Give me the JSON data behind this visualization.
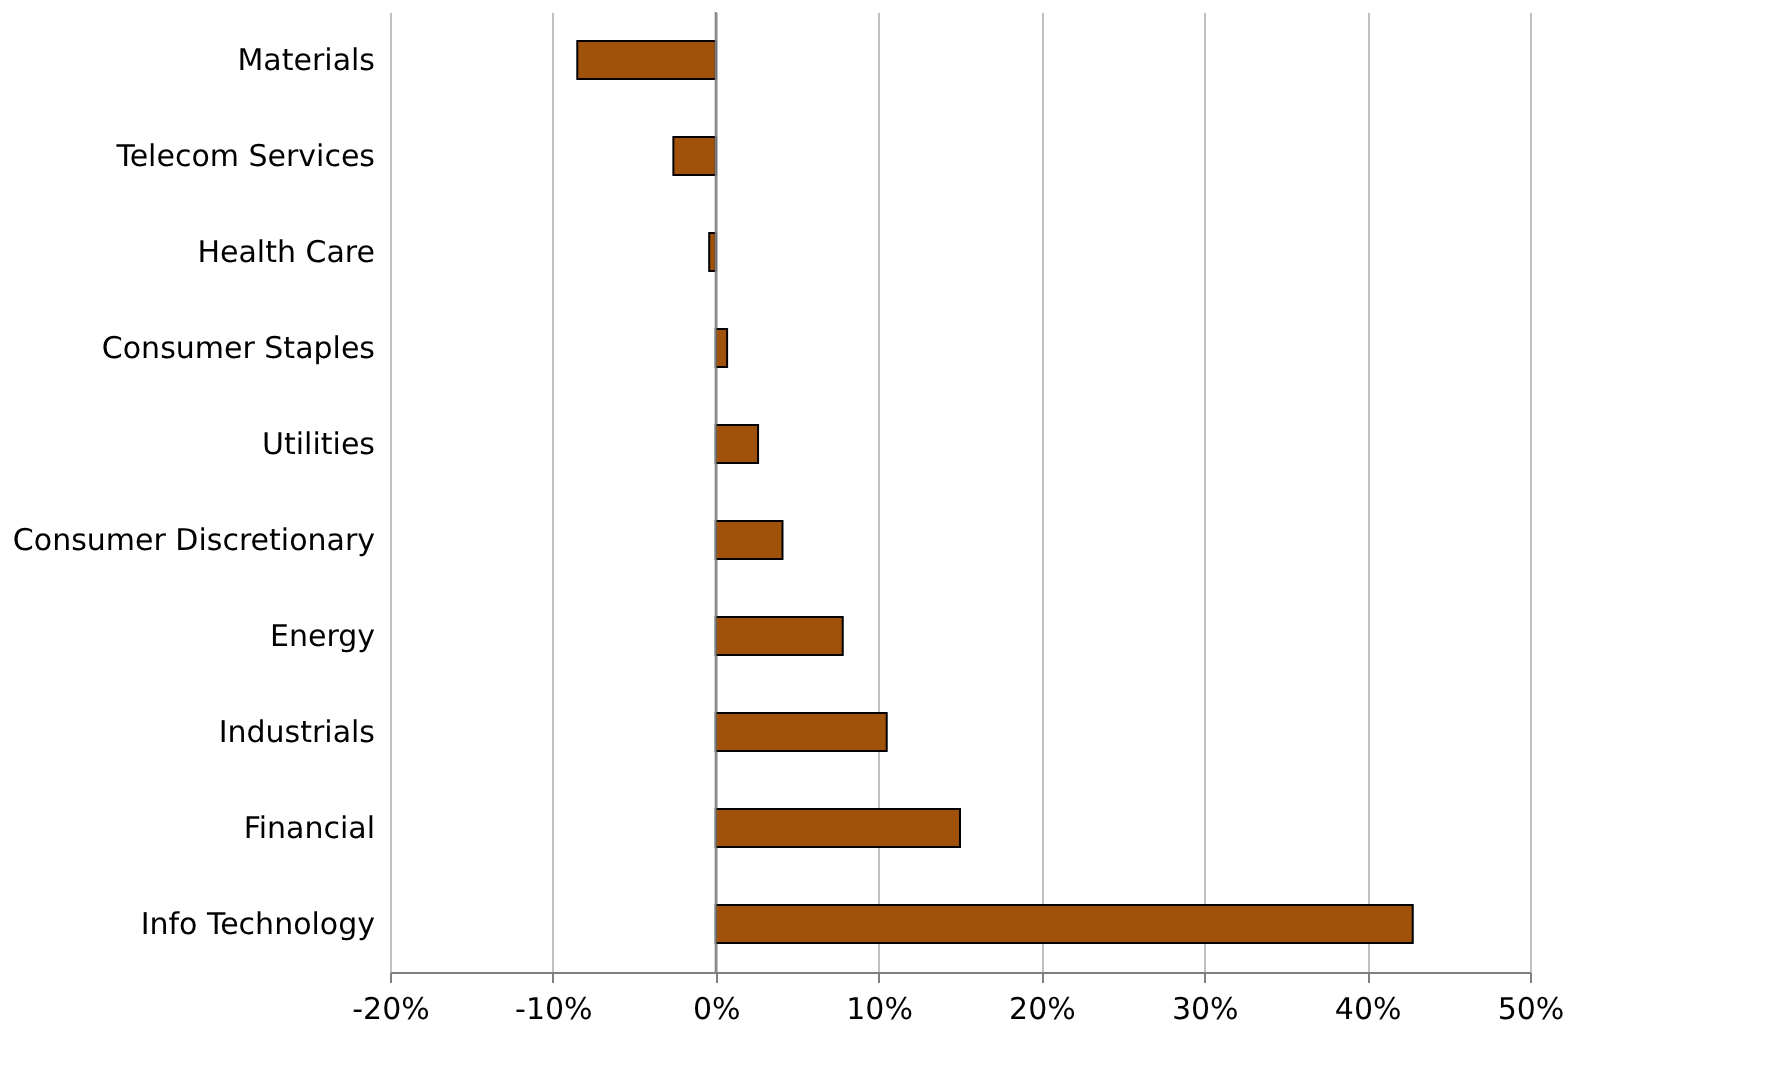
{
  "chart_data": {
    "type": "bar",
    "orientation": "horizontal",
    "categories": [
      "Materials",
      "Telecom Services",
      "Health Care",
      "Consumer Staples",
      "Utilities",
      "Consumer Discretionary",
      "Energy",
      "Industrials",
      "Financial",
      "Info Technology"
    ],
    "values": [
      -8.5,
      -2.6,
      -0.4,
      0.7,
      2.6,
      4.1,
      7.8,
      10.5,
      15.0,
      42.8
    ],
    "color": "#a0520a",
    "xlim": [
      -20,
      50
    ],
    "xticks": [
      {
        "value": -20,
        "label": "-20%"
      },
      {
        "value": -10,
        "label": "-10%"
      },
      {
        "value": 0,
        "label": "0%"
      },
      {
        "value": 10,
        "label": "10%"
      },
      {
        "value": 20,
        "label": "20%"
      },
      {
        "value": 30,
        "label": "30%"
      },
      {
        "value": 40,
        "label": "40%"
      },
      {
        "value": 50,
        "label": "50%"
      }
    ],
    "grid": "x"
  }
}
